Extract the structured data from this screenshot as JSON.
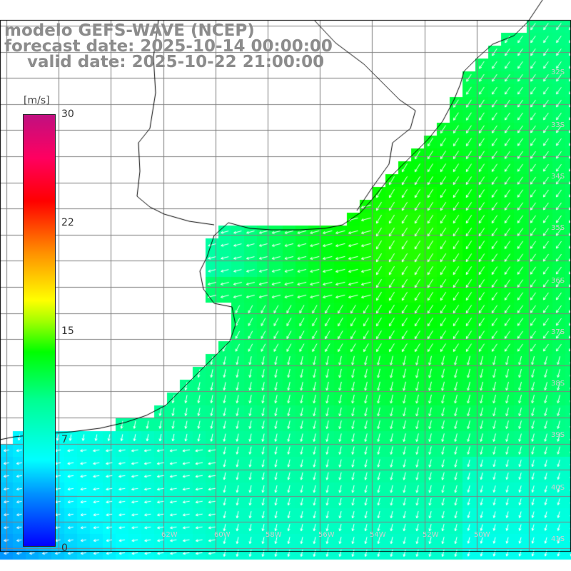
{
  "title": {
    "line1": "modelo GEFS-WAVE (NCEP)",
    "line2": "forecast date: 2025-10-14 00:00:00",
    "line3": "    valid date: 2025-10-22 21:00:00"
  },
  "colorbar": {
    "unit": "[m/s]",
    "min": 0,
    "max": 30,
    "ticks": [
      "30",
      "22",
      "15",
      "7",
      "0"
    ],
    "colors": [
      "#0000ff",
      "#0090ff",
      "#00ffff",
      "#00ff90",
      "#00ff00",
      "#a0ff00",
      "#ffff00",
      "#ff9000",
      "#ff0000",
      "#ff0060",
      "#c01080"
    ]
  },
  "map": {
    "latitude_labels": [
      "32S",
      "33S",
      "34S",
      "35S",
      "36S",
      "37S",
      "38S",
      "39S",
      "40S",
      "41S"
    ],
    "longitude_labels": [
      "62W",
      "60W",
      "58W",
      "56W",
      "54W",
      "52W",
      "50W"
    ],
    "field": "wind speed and direction",
    "colors": {
      "land": "#ffffff",
      "coastline": "#000000",
      "grid": "#808080",
      "arrows": "#ffffff"
    }
  }
}
